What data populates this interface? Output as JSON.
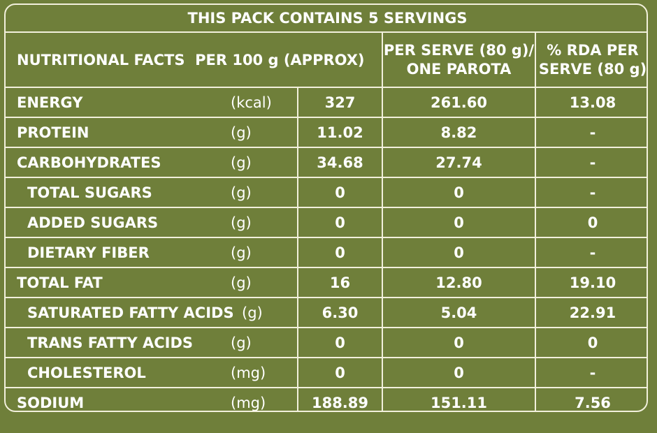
{
  "title": "THIS PACK CONTAINS 5 SERVINGS",
  "header": {
    "label": "NUTRITIONAL FACTS  PER 100 g (APPROX)",
    "col_serve_line1": "PER SERVE (80 g)/",
    "col_serve_line2": "ONE PAROTA",
    "col_rda_line1": "% RDA PER",
    "col_rda_line2": "SERVE (80 g)"
  },
  "rows": [
    {
      "name": "ENERGY",
      "unit": "(kcal)",
      "per100": "327",
      "perServe": "261.60",
      "rda": "13.08"
    },
    {
      "name": "PROTEIN",
      "unit": "(g)",
      "per100": "11.02",
      "perServe": "8.82",
      "rda": "-"
    },
    {
      "name": "CARBOHYDRATES",
      "unit": "(g)",
      "per100": "34.68",
      "perServe": "27.74",
      "rda": "-"
    },
    {
      "name": "TOTAL SUGARS",
      "unit": "(g)",
      "per100": "0",
      "perServe": "0",
      "rda": "-"
    },
    {
      "name": "ADDED SUGARS",
      "unit": "(g)",
      "per100": "0",
      "perServe": "0",
      "rda": "0"
    },
    {
      "name": "DIETARY FIBER",
      "unit": "(g)",
      "per100": "0",
      "perServe": "0",
      "rda": "-"
    },
    {
      "name": "TOTAL FAT",
      "unit": "(g)",
      "per100": "16",
      "perServe": "12.80",
      "rda": "19.10"
    },
    {
      "name": "SATURATED FATTY ACIDS",
      "unit": "(g)",
      "per100": "6.30",
      "perServe": "5.04",
      "rda": "22.91"
    },
    {
      "name": "TRANS FATTY ACIDS",
      "unit": "(g)",
      "per100": "0",
      "perServe": "0",
      "rda": "0"
    },
    {
      "name": "CHOLESTEROL",
      "unit": "(mg)",
      "per100": "0",
      "perServe": "0",
      "rda": "-"
    },
    {
      "name": "SODIUM",
      "unit": "(mg)",
      "per100": "188.89",
      "perServe": "151.11",
      "rda": "7.56"
    }
  ]
}
